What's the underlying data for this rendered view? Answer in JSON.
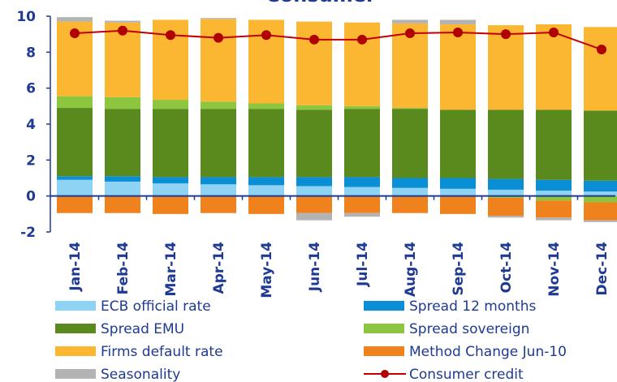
{
  "chart_data": {
    "type": "bar",
    "title": "Consumer",
    "categories": [
      "Jan-14",
      "Feb-14",
      "Mar-14",
      "Apr-14",
      "May-14",
      "Jun-14",
      "Jul-14",
      "Aug-14",
      "Sep-14",
      "Oct-14",
      "Nov-14",
      "Dec-14"
    ],
    "stacked": true,
    "series": [
      {
        "name": "ECB official rate",
        "color": "#8fd3f4",
        "values": [
          0.9,
          0.8,
          0.7,
          0.65,
          0.6,
          0.55,
          0.5,
          0.45,
          0.4,
          0.35,
          0.3,
          0.25
        ]
      },
      {
        "name": "Spread 12 months",
        "color": "#0a8fd6",
        "values": [
          0.2,
          0.3,
          0.35,
          0.4,
          0.45,
          0.5,
          0.55,
          0.55,
          0.6,
          0.6,
          0.6,
          0.6
        ]
      },
      {
        "name": "Spread EMU",
        "color": "#5a8a1e",
        "values": [
          3.8,
          3.75,
          3.8,
          3.8,
          3.8,
          3.75,
          3.8,
          3.85,
          3.8,
          3.85,
          3.9,
          3.9
        ]
      },
      {
        "name": "Spread sovereign",
        "color": "#8cc63f",
        "values": [
          0.65,
          0.65,
          0.5,
          0.4,
          0.3,
          0.25,
          0.15,
          0.05,
          0,
          -0.1,
          -0.25,
          -0.35
        ]
      },
      {
        "name": "Firms default rate",
        "color": "#fbb632",
        "values": [
          4.15,
          4.15,
          4.45,
          4.6,
          4.65,
          4.65,
          4.65,
          4.7,
          4.75,
          4.7,
          4.75,
          4.65
        ]
      },
      {
        "name": "Method Change Jun-10",
        "color": "#f0821e",
        "values": [
          -0.95,
          -0.95,
          -1.0,
          -0.95,
          -1.0,
          -0.95,
          -0.95,
          -0.95,
          -1.0,
          -1.0,
          -0.95,
          -1.0
        ]
      },
      {
        "name": "Seasonality",
        "color": "#b3b3b3",
        "values": [
          0.25,
          0.1,
          0,
          0.05,
          0,
          -0.4,
          -0.2,
          0.2,
          0.25,
          -0.1,
          -0.15,
          -0.1
        ]
      },
      {
        "name": "Consumer credit",
        "color": "#c00000",
        "type": "line",
        "values": [
          9.05,
          9.2,
          8.95,
          8.8,
          8.95,
          8.7,
          8.7,
          9.05,
          9.1,
          9.0,
          9.1,
          8.15
        ]
      }
    ],
    "ylim": [
      -2,
      10
    ],
    "yticks": [
      -2,
      0,
      2,
      4,
      6,
      8,
      10
    ]
  }
}
